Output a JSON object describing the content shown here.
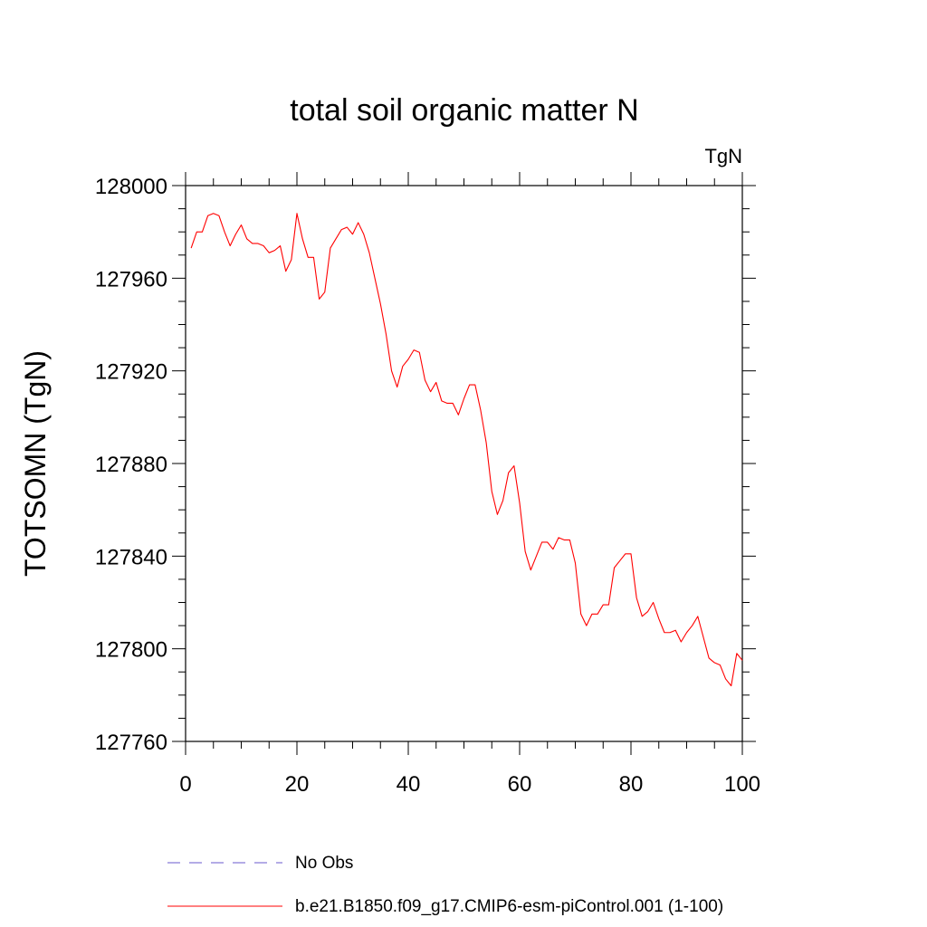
{
  "chart_data": {
    "type": "line",
    "title": "total soil organic matter N",
    "units_label": "TgN",
    "ylabel": "TOTSOMN  (TgN)",
    "xlabel": "",
    "xlim": [
      0,
      100
    ],
    "ylim": [
      127760,
      128000
    ],
    "x_ticks": [
      0,
      20,
      40,
      60,
      80,
      100
    ],
    "y_ticks": [
      127760,
      127800,
      127840,
      127880,
      127920,
      127960,
      128000
    ],
    "grid": false,
    "legend_position": "bottom",
    "series": [
      {
        "name": "No Obs",
        "color": "#6a5acd",
        "dash": true,
        "x": [],
        "values": []
      },
      {
        "name": "b.e21.B1850.f09_g17.CMIP6-esm-piControl.001 (1-100)",
        "color": "#ff0000",
        "dash": false,
        "x": [
          1,
          2,
          3,
          4,
          5,
          6,
          7,
          8,
          9,
          10,
          11,
          12,
          13,
          14,
          15,
          16,
          17,
          18,
          19,
          20,
          21,
          22,
          23,
          24,
          25,
          26,
          27,
          28,
          29,
          30,
          31,
          32,
          33,
          34,
          35,
          36,
          37,
          38,
          39,
          40,
          41,
          42,
          43,
          44,
          45,
          46,
          47,
          48,
          49,
          50,
          51,
          52,
          53,
          54,
          55,
          56,
          57,
          58,
          59,
          60,
          61,
          62,
          63,
          64,
          65,
          66,
          67,
          68,
          69,
          70,
          71,
          72,
          73,
          74,
          75,
          76,
          77,
          78,
          79,
          80,
          81,
          82,
          83,
          84,
          85,
          86,
          87,
          88,
          89,
          90,
          91,
          92,
          93,
          94,
          95,
          96,
          97,
          98,
          99,
          100
        ],
        "values": [
          127973,
          127980,
          127980,
          127987,
          127988,
          127987,
          127980,
          127974,
          127979,
          127983,
          127977,
          127975,
          127975,
          127974,
          127971,
          127972,
          127974,
          127963,
          127968,
          127988,
          127977,
          127969,
          127969,
          127951,
          127954,
          127973,
          127977,
          127981,
          127982,
          127979,
          127984,
          127979,
          127971,
          127960,
          127949,
          127936,
          127920,
          127913,
          127922,
          127925,
          127929,
          127928,
          127916,
          127911,
          127915,
          127907,
          127906,
          127906,
          127901,
          127908,
          127914,
          127914,
          127903,
          127889,
          127868,
          127858,
          127864,
          127876,
          127879,
          127863,
          127842,
          127834,
          127840,
          127846,
          127846,
          127843,
          127848,
          127847,
          127847,
          127837,
          127815,
          127810,
          127815,
          127815,
          127819,
          127819,
          127835,
          127838,
          127841,
          127841,
          127822,
          127814,
          127816,
          127820,
          127813,
          127807,
          127807,
          127808,
          127803,
          127807,
          127810,
          127814,
          127805,
          127796,
          127794,
          127793,
          127787,
          127784,
          127798,
          127795
        ]
      }
    ]
  }
}
